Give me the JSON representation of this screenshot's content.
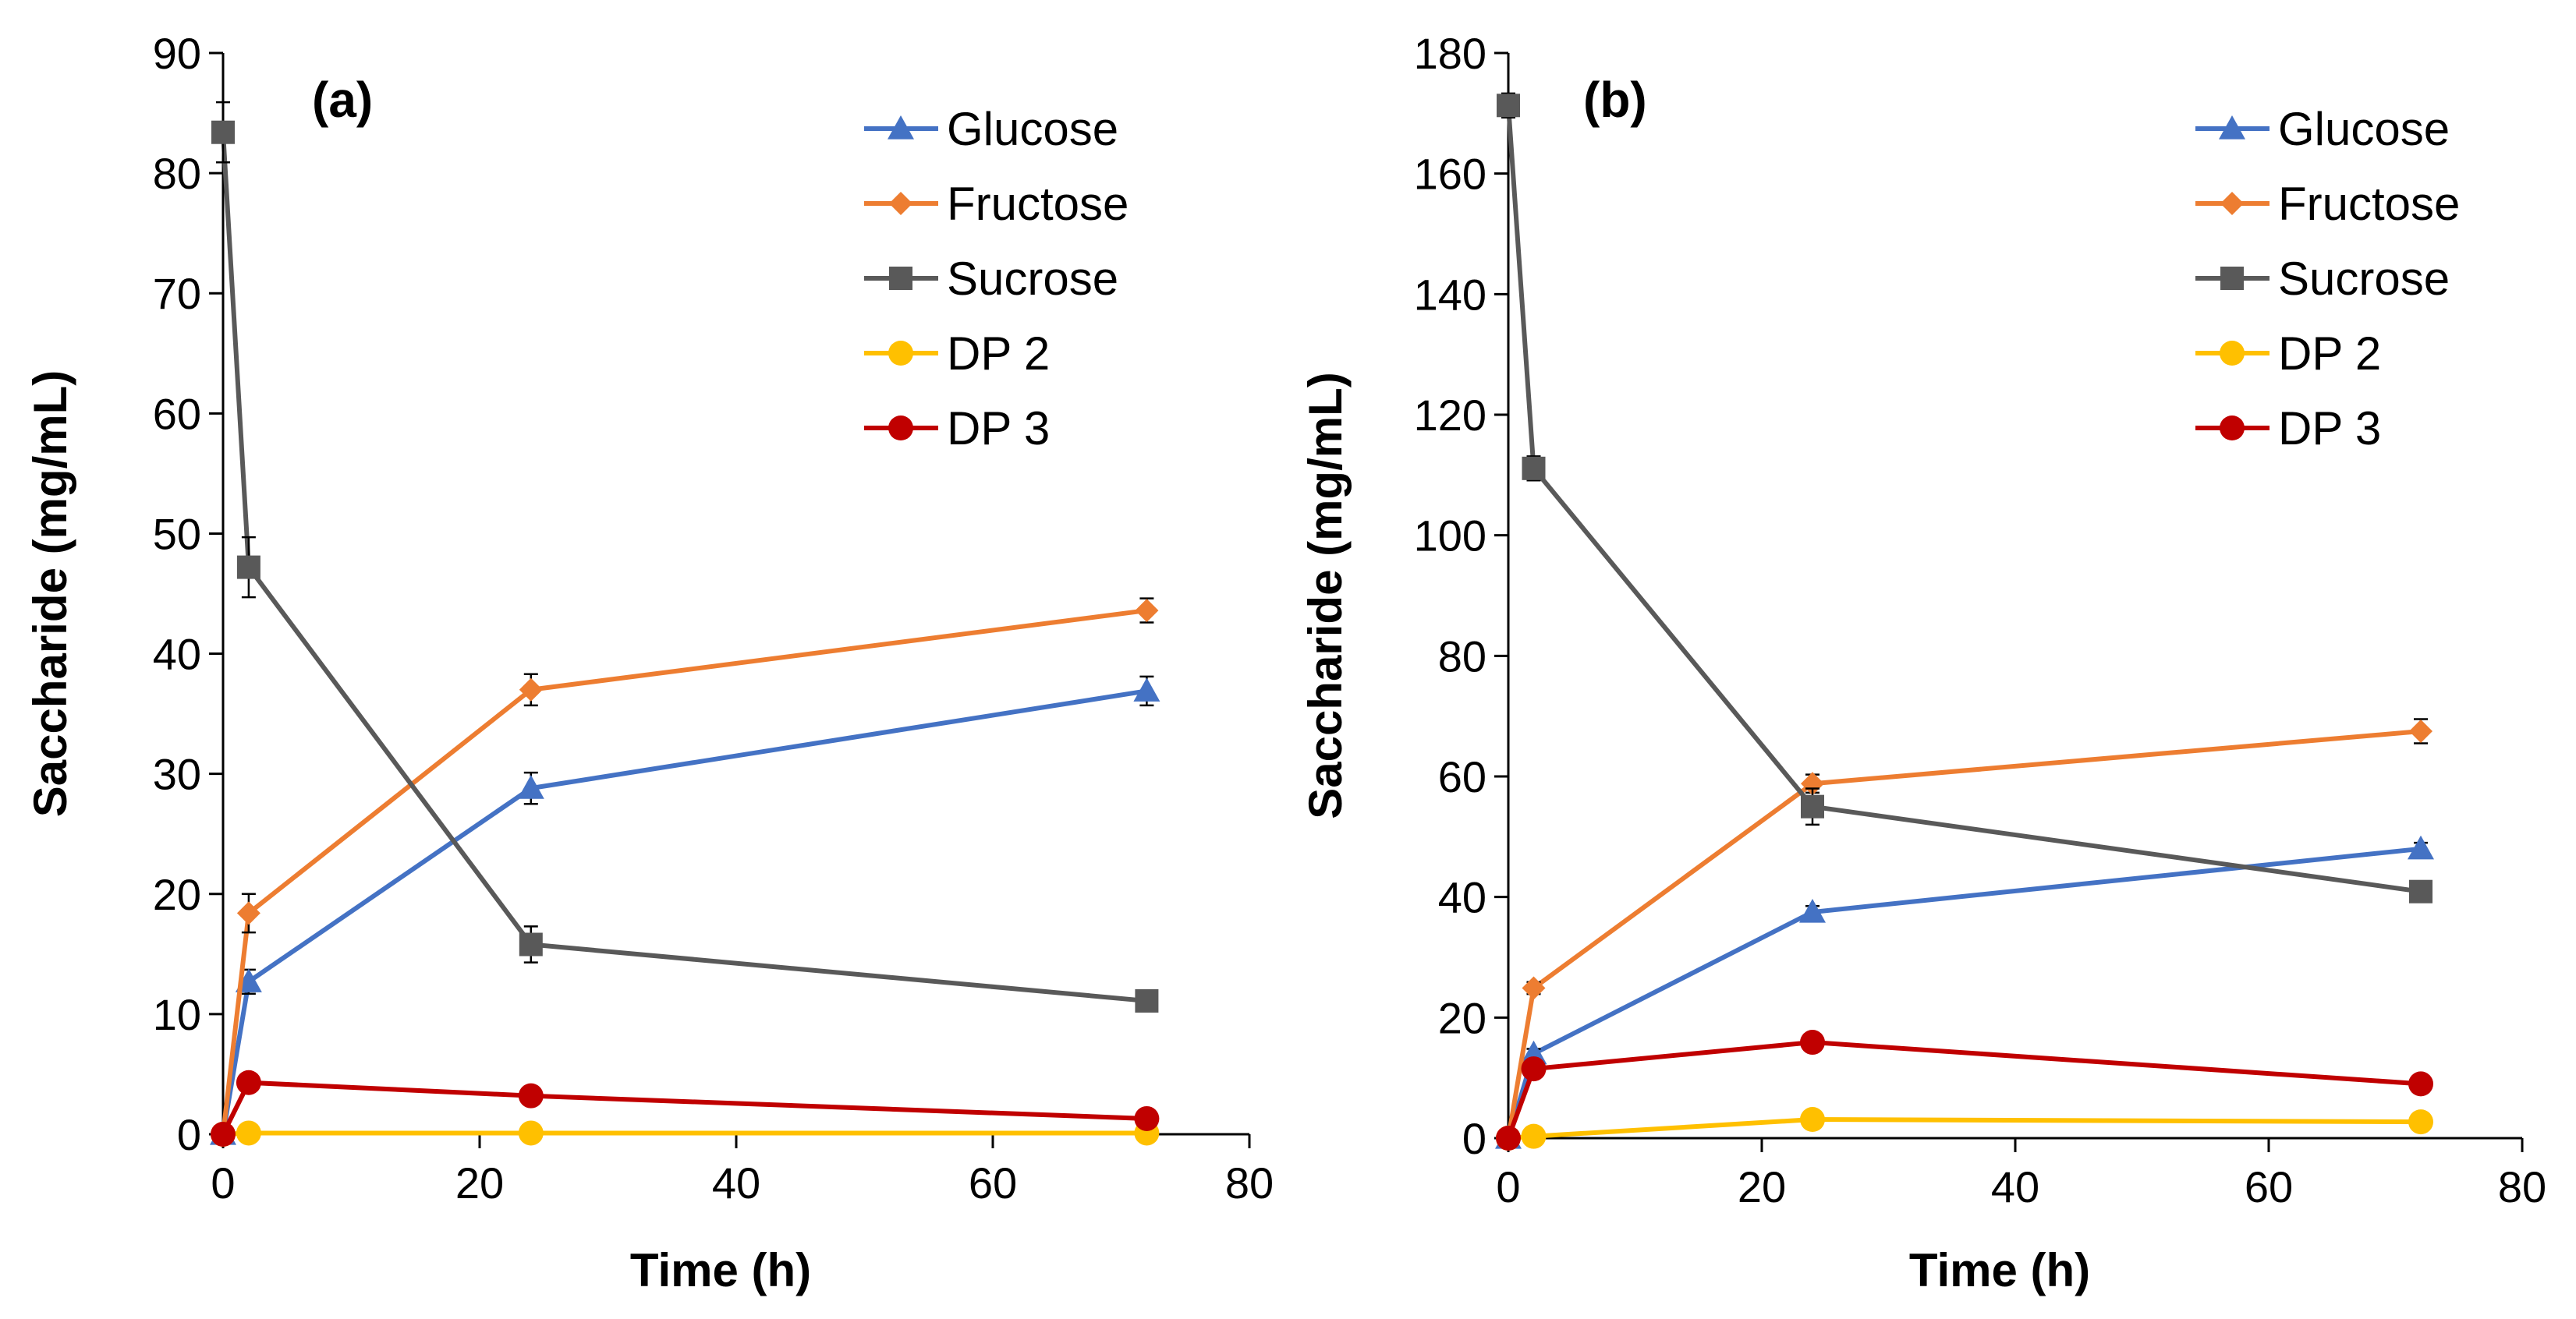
{
  "chart_data": [
    {
      "type": "line",
      "panel_label": "(a)",
      "xlabel": "Time (h)",
      "ylabel": "Saccharide (mg/mL)",
      "xlim": [
        0,
        80
      ],
      "ylim": [
        0,
        90
      ],
      "xticks": [
        0,
        20,
        40,
        60,
        80
      ],
      "yticks": [
        0,
        10,
        20,
        30,
        40,
        50,
        60,
        70,
        80,
        90
      ],
      "grid": false,
      "legend_position": "top-right",
      "x": [
        0,
        2,
        24,
        72
      ],
      "series": [
        {
          "name": "Glucose",
          "color": "#4472C4",
          "marker": "triangle",
          "values": [
            0,
            12.7,
            28.8,
            36.9
          ],
          "errors": [
            0,
            1.0,
            1.3,
            1.2
          ]
        },
        {
          "name": "Fructose",
          "color": "#ED7D31",
          "marker": "diamond",
          "values": [
            0,
            18.4,
            37.0,
            43.6
          ],
          "errors": [
            0,
            1.6,
            1.3,
            1.0
          ]
        },
        {
          "name": "Sucrose",
          "color": "#595959",
          "marker": "square",
          "values": [
            83.4,
            47.2,
            15.8,
            11.1
          ],
          "errors": [
            2.5,
            2.5,
            1.5,
            0.5
          ]
        },
        {
          "name": "DP 2",
          "color": "#FFC000",
          "marker": "circle",
          "values": [
            0,
            0.1,
            0.1,
            0.1
          ],
          "errors": [
            0,
            0,
            0,
            0
          ]
        },
        {
          "name": "DP 3",
          "color": "#C00000",
          "marker": "circle",
          "values": [
            0,
            4.3,
            3.2,
            1.3
          ],
          "errors": [
            0,
            0,
            0,
            0
          ]
        }
      ]
    },
    {
      "type": "line",
      "panel_label": "(b)",
      "xlabel": "Time (h)",
      "ylabel": "Saccharide (mg/mL)",
      "xlim": [
        0,
        80
      ],
      "ylim": [
        0,
        180
      ],
      "xticks": [
        0,
        20,
        40,
        60,
        80
      ],
      "yticks": [
        0,
        20,
        40,
        60,
        80,
        100,
        120,
        140,
        160,
        180
      ],
      "grid": false,
      "legend_position": "top-right",
      "x": [
        0,
        2,
        24,
        72
      ],
      "series": [
        {
          "name": "Glucose",
          "color": "#4472C4",
          "marker": "triangle",
          "values": [
            0,
            14.0,
            37.5,
            48.0
          ],
          "errors": [
            0,
            0.8,
            1.0,
            1.0
          ]
        },
        {
          "name": "Fructose",
          "color": "#ED7D31",
          "marker": "diamond",
          "values": [
            0,
            24.9,
            58.8,
            67.5
          ],
          "errors": [
            0,
            1.0,
            1.5,
            2.0
          ]
        },
        {
          "name": "Sucrose",
          "color": "#595959",
          "marker": "square",
          "values": [
            171.3,
            111.1,
            55.0,
            40.9
          ],
          "errors": [
            2.0,
            2.0,
            3.0,
            1.0
          ]
        },
        {
          "name": "DP 2",
          "color": "#FFC000",
          "marker": "circle",
          "values": [
            0,
            0.3,
            3.1,
            2.7
          ],
          "errors": [
            0,
            0,
            0,
            0
          ]
        },
        {
          "name": "DP 3",
          "color": "#C00000",
          "marker": "circle",
          "values": [
            0,
            11.5,
            15.9,
            9.0
          ],
          "errors": [
            0,
            0,
            0,
            0
          ]
        }
      ]
    }
  ]
}
